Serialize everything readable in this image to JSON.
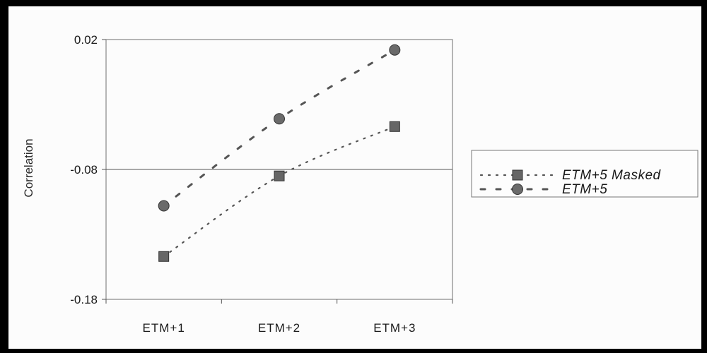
{
  "chart_data": {
    "type": "line",
    "categories": [
      "ETM+1",
      "ETM+2",
      "ETM+3"
    ],
    "ylabel": "Correlation",
    "ylim": [
      -0.18,
      0.02
    ],
    "yticks": [
      "0.02",
      "-0.08",
      "-0.18"
    ],
    "ytick_values": [
      0.02,
      -0.08,
      -0.18
    ],
    "reference_line_y": -0.08,
    "legend_position": "right",
    "series": [
      {
        "name": "ETM+5 Masked",
        "values": [
          -0.147,
          -0.085,
          -0.047
        ],
        "marker": "square",
        "line_style": "dotted",
        "color": "#555555"
      },
      {
        "name": "ETM+5",
        "values": [
          -0.108,
          -0.041,
          0.012
        ],
        "marker": "circle",
        "line_style": "dashed",
        "color": "#555555"
      }
    ]
  }
}
